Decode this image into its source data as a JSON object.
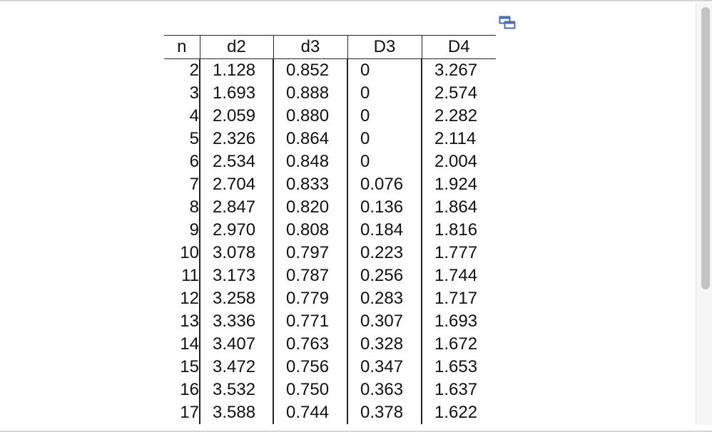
{
  "table": {
    "columns": [
      "n",
      "d2",
      "d3",
      "D3",
      "D4"
    ],
    "rows": [
      [
        "2",
        "1.128",
        "0.852",
        "0",
        "3.267"
      ],
      [
        "3",
        "1.693",
        "0.888",
        "0",
        "2.574"
      ],
      [
        "4",
        "2.059",
        "0.880",
        "0",
        "2.282"
      ],
      [
        "5",
        "2.326",
        "0.864",
        "0",
        "2.114"
      ],
      [
        "6",
        "2.534",
        "0.848",
        "0",
        "2.004"
      ],
      [
        "7",
        "2.704",
        "0.833",
        "0.076",
        "1.924"
      ],
      [
        "8",
        "2.847",
        "0.820",
        "0.136",
        "1.864"
      ],
      [
        "9",
        "2.970",
        "0.808",
        "0.184",
        "1.816"
      ],
      [
        "10",
        "3.078",
        "0.797",
        "0.223",
        "1.777"
      ],
      [
        "11",
        "3.173",
        "0.787",
        "0.256",
        "1.744"
      ],
      [
        "12",
        "3.258",
        "0.779",
        "0.283",
        "1.717"
      ],
      [
        "13",
        "3.336",
        "0.771",
        "0.307",
        "1.693"
      ],
      [
        "14",
        "3.407",
        "0.763",
        "0.328",
        "1.672"
      ],
      [
        "15",
        "3.472",
        "0.756",
        "0.347",
        "1.653"
      ],
      [
        "16",
        "3.532",
        "0.750",
        "0.363",
        "1.637"
      ],
      [
        "17",
        "3.588",
        "0.744",
        "0.378",
        "1.622"
      ]
    ]
  },
  "icons": {
    "popout": "popout-window-icon"
  },
  "colors": {
    "icon_accent": "#4a6fb5",
    "text": "#111111",
    "scroll_thumb": "#c4c4c4"
  }
}
